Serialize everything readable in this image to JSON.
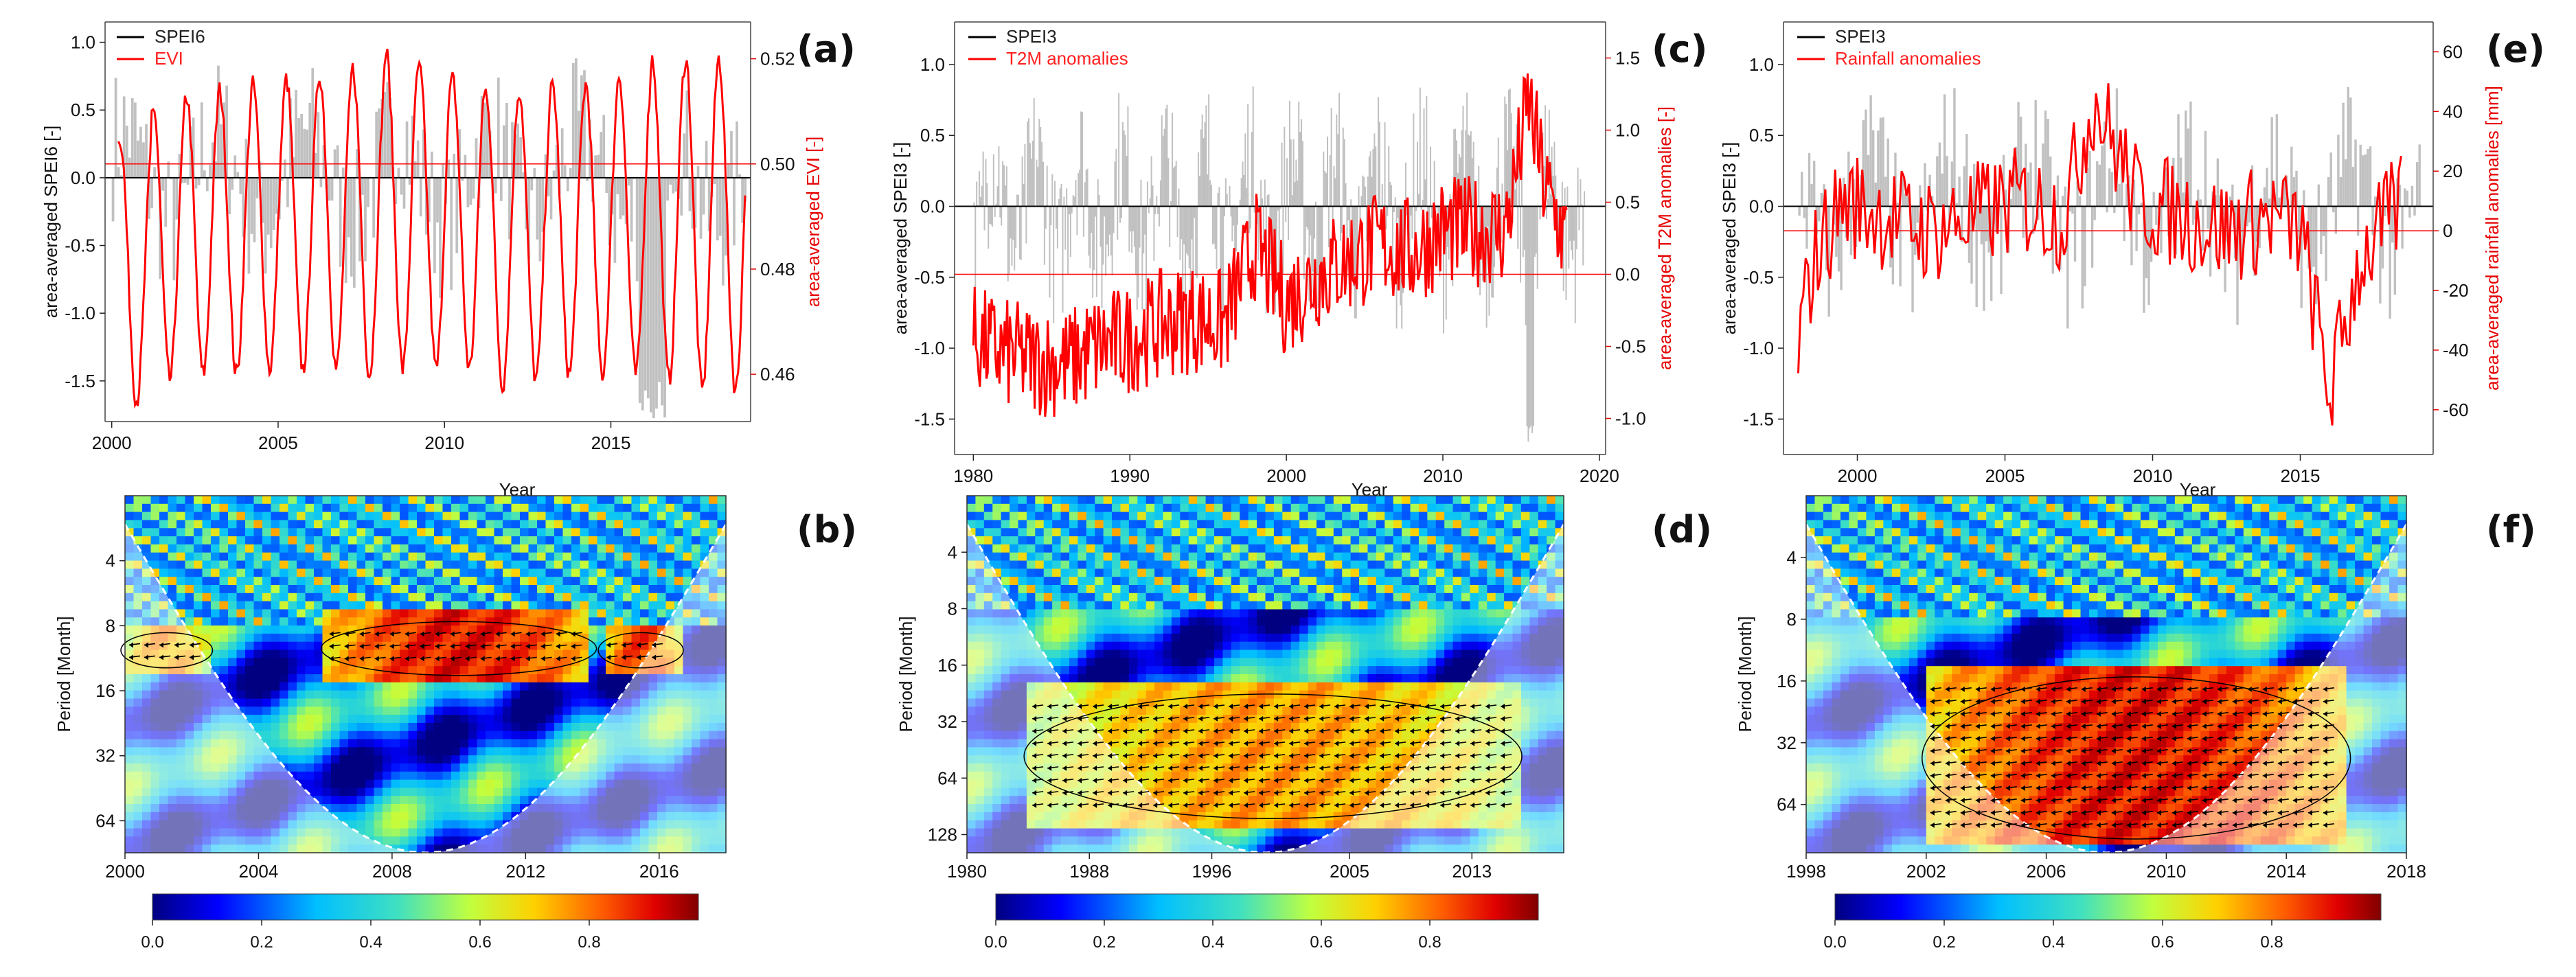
{
  "figure": {
    "panels": [
      {
        "id": "a",
        "label": "(a)",
        "kind": "timeseries",
        "legend": [
          {
            "name": "SPEI6",
            "color": "#000000"
          },
          {
            "name": "EVI",
            "color": "#ff0000"
          }
        ],
        "xlabel": "Year",
        "xlim": [
          1999.8,
          2019.2
        ],
        "xticks": [
          "2000",
          "2005",
          "2010",
          "2015"
        ],
        "ylabel": "area-averaged SPEI6 [-]",
        "ylim": [
          -1.8,
          1.15
        ],
        "yticks": [
          "-1.5",
          "-1.0",
          "-0.5",
          "0.0",
          "0.5",
          "1.0"
        ],
        "y2label": "area-averaged EVI [-]",
        "y2lim": [
          0.451,
          0.527
        ],
        "y2ticks": [
          "0.46",
          "0.48",
          "0.50",
          "0.52"
        ],
        "y2_reference": 0.5
      },
      {
        "id": "c",
        "label": "(c)",
        "kind": "timeseries",
        "legend": [
          {
            "name": "SPEI3",
            "color": "#000000"
          },
          {
            "name": "T2M anomalies",
            "color": "#ff0000"
          }
        ],
        "xlabel": "Year",
        "xlim": [
          1978.8,
          2020.4
        ],
        "xticks": [
          "1980",
          "1990",
          "2000",
          "2010",
          "2020"
        ],
        "ylabel": "area-averaged SPEI3 [-]",
        "ylim": [
          -1.75,
          1.3
        ],
        "yticks": [
          "-1.5",
          "-1.0",
          "-0.5",
          "0.0",
          "0.5",
          "1.0"
        ],
        "y2label": "area-averaged T2M anomalies [-]",
        "y2lim": [
          -1.25,
          1.75
        ],
        "y2ticks": [
          "-1.0",
          "-0.5",
          "0.0",
          "0.5",
          "1.0",
          "1.5"
        ],
        "y2_reference": 0.0
      },
      {
        "id": "e",
        "label": "(e)",
        "kind": "timeseries",
        "legend": [
          {
            "name": "SPEI3",
            "color": "#000000"
          },
          {
            "name": "Rainfall anomalies",
            "color": "#ff0000"
          }
        ],
        "xlabel": "Year",
        "xlim": [
          1997.5,
          2019.5
        ],
        "xticks": [
          "2000",
          "2005",
          "2010",
          "2015"
        ],
        "ylabel": "area-averaged SPEI3 [-]",
        "ylim": [
          -1.75,
          1.3
        ],
        "yticks": [
          "-1.5",
          "-1.0",
          "-0.5",
          "0.0",
          "0.5",
          "1.0"
        ],
        "y2label": "area-averaged rainfall anomalies [mm]",
        "y2lim": [
          -75,
          70
        ],
        "y2ticks": [
          "-60",
          "-40",
          "-20",
          "0",
          "20",
          "40",
          "60"
        ],
        "y2_reference": 0
      },
      {
        "id": "b",
        "label": "(b)",
        "kind": "wavelet",
        "ylabel": "Period [Month]",
        "period_ticks": [
          "4",
          "8",
          "16",
          "32",
          "64"
        ],
        "period_range": [
          2,
          90
        ],
        "xticks": [
          "2000",
          "2004",
          "2008",
          "2012",
          "2016"
        ],
        "xrange": [
          2000,
          2018
        ],
        "colorbar_ticks": [
          "0.0",
          "0.2",
          "0.4",
          "0.6",
          "0.8"
        ]
      },
      {
        "id": "d",
        "label": "(d)",
        "kind": "wavelet",
        "ylabel": "Period [Month]",
        "period_ticks": [
          "4",
          "8",
          "16",
          "32",
          "64",
          "128"
        ],
        "period_range": [
          2,
          160
        ],
        "xticks": [
          "1980",
          "1988",
          "1996",
          "2005",
          "2013"
        ],
        "xrange": [
          1980,
          2019
        ],
        "colorbar_ticks": [
          "0.0",
          "0.2",
          "0.4",
          "0.6",
          "0.8"
        ]
      },
      {
        "id": "f",
        "label": "(f)",
        "kind": "wavelet",
        "ylabel": "Period [Month]",
        "period_ticks": [
          "4",
          "8",
          "16",
          "32",
          "64"
        ],
        "period_range": [
          2,
          110
        ],
        "xticks": [
          "1998",
          "2002",
          "2006",
          "2010",
          "2014",
          "2018"
        ],
        "xrange": [
          1998,
          2018
        ],
        "colorbar_ticks": [
          "0.0",
          "0.2",
          "0.4",
          "0.6",
          "0.8"
        ]
      }
    ]
  },
  "chart_data": [
    {
      "type": "line",
      "panel": "a",
      "title": "",
      "xlabel": "Year",
      "ylabel": "area-averaged SPEI6 [-]",
      "y2label": "area-averaged EVI [-]",
      "x_range": [
        2000,
        2019
      ],
      "series": [
        {
          "name": "SPEI6",
          "type": "bar",
          "axis": "left",
          "color": "#bdbdbd",
          "description": "monthly SPEI6 shown as grey bars around 0, roughly between -1.8 and 1.1",
          "range": [
            -1.8,
            1.1
          ]
        },
        {
          "name": "EVI",
          "type": "line",
          "axis": "right",
          "color": "#ff0000",
          "x": [
            2000.0,
            2000.7,
            2001.3,
            2002.0,
            2003.0,
            2004.0,
            2005.0,
            2006.0,
            2007.0,
            2008.0,
            2009.0,
            2010.0,
            2011.0,
            2012.0,
            2013.0,
            2014.0,
            2015.0,
            2016.0,
            2017.0,
            2018.0,
            2018.8
          ],
          "peaks": [
            0.505,
            0.511,
            0.513,
            0.514,
            0.515,
            0.516,
            0.517,
            0.518,
            0.521,
            0.518,
            0.516,
            0.514,
            0.514,
            0.515,
            0.515,
            0.517,
            0.52,
            0.52,
            0.52,
            0.521,
            0.521
          ],
          "troughs": [
            0.455,
            0.459,
            0.46,
            0.46,
            0.461,
            0.461,
            0.461,
            0.46,
            0.461,
            0.461,
            0.461,
            0.458,
            0.459,
            0.46,
            0.46,
            0.46,
            0.459,
            0.457,
            0.457,
            0.455,
            0.455
          ],
          "description": "seasonal cycle, one peak per year"
        }
      ]
    },
    {
      "type": "line",
      "panel": "c",
      "title": "",
      "xlabel": "Year",
      "ylabel": "area-averaged SPEI3 [-]",
      "y2label": "area-averaged T2M anomalies [-]",
      "x_range": [
        1980,
        2019
      ],
      "series": [
        {
          "name": "SPEI3",
          "type": "bar",
          "axis": "left",
          "color": "#bdbdbd",
          "range": [
            -1.7,
            1.2
          ]
        },
        {
          "name": "T2M anomalies",
          "type": "line",
          "axis": "right",
          "color": "#ff0000",
          "x": [
            1980,
            1982,
            1984,
            1986,
            1988,
            1990,
            1992,
            1994,
            1996,
            1998,
            2000,
            2002,
            2004,
            2006,
            2008,
            2010,
            2012,
            2014,
            2015.5,
            2016.5,
            2018
          ],
          "trend": [
            -0.45,
            -0.55,
            -0.6,
            -0.62,
            -0.5,
            -0.45,
            -0.35,
            -0.3,
            -0.35,
            0.2,
            -0.2,
            0.0,
            0.1,
            0.2,
            0.15,
            0.3,
            0.3,
            0.3,
            1.2,
            0.6,
            0.2
          ]
        }
      ]
    },
    {
      "type": "line",
      "panel": "e",
      "title": "",
      "xlabel": "Year",
      "ylabel": "area-averaged SPEI3 [-]",
      "y2label": "area-averaged rainfall anomalies [mm]",
      "x_range": [
        1998,
        2019
      ],
      "series": [
        {
          "name": "SPEI3",
          "type": "bar",
          "axis": "left",
          "color": "#bdbdbd",
          "range": [
            -1.5,
            1.2
          ]
        },
        {
          "name": "Rainfall anomalies",
          "type": "line",
          "axis": "right",
          "color": "#ff0000",
          "x": [
            1998.0,
            1998.5,
            1999.5,
            2001.0,
            2002.5,
            2004.0,
            2005.5,
            2007.0,
            2008.0,
            2009.5,
            2011.0,
            2012.5,
            2014.0,
            2015.0,
            2016.0,
            2017.0,
            2018.5
          ],
          "trend": [
            -40,
            -10,
            10,
            5,
            0,
            5,
            10,
            5,
            45,
            10,
            5,
            0,
            5,
            0,
            -55,
            -10,
            10
          ]
        }
      ]
    },
    {
      "type": "heatmap",
      "panel": "b",
      "title": "",
      "xlabel": "",
      "ylabel": "Period [Month]",
      "x_range": [
        2000,
        2018
      ],
      "period_ticks": [
        4,
        8,
        16,
        32,
        64
      ],
      "color_range": [
        0,
        1
      ],
      "features": [
        {
          "period_range": [
            8,
            13
          ],
          "x_range": [
            2006,
            2014
          ],
          "coherence": 0.9
        },
        {
          "period_range": [
            9,
            12
          ],
          "x_range": [
            2014.3,
            2016.6
          ],
          "coherence": 0.85
        },
        {
          "period_range": [
            9,
            12
          ],
          "x_range": [
            2000,
            2002.5
          ],
          "coherence": 0.75
        }
      ]
    },
    {
      "type": "heatmap",
      "panel": "d",
      "title": "",
      "xlabel": "",
      "ylabel": "Period [Month]",
      "x_range": [
        1980,
        2019
      ],
      "period_ticks": [
        4,
        8,
        16,
        32,
        64,
        128
      ],
      "color_range": [
        0,
        1
      ],
      "features": [
        {
          "period_range": [
            24,
            100
          ],
          "x_range": [
            1984,
            2016
          ],
          "coherence": 0.75
        }
      ]
    },
    {
      "type": "heatmap",
      "panel": "f",
      "title": "",
      "xlabel": "",
      "ylabel": "Period [Month]",
      "x_range": [
        1998,
        2018
      ],
      "period_ticks": [
        4,
        8,
        16,
        32,
        64
      ],
      "color_range": [
        0,
        1
      ],
      "features": [
        {
          "period_range": [
            16,
            90
          ],
          "x_range": [
            2002,
            2016
          ],
          "coherence": 0.9
        }
      ]
    }
  ]
}
